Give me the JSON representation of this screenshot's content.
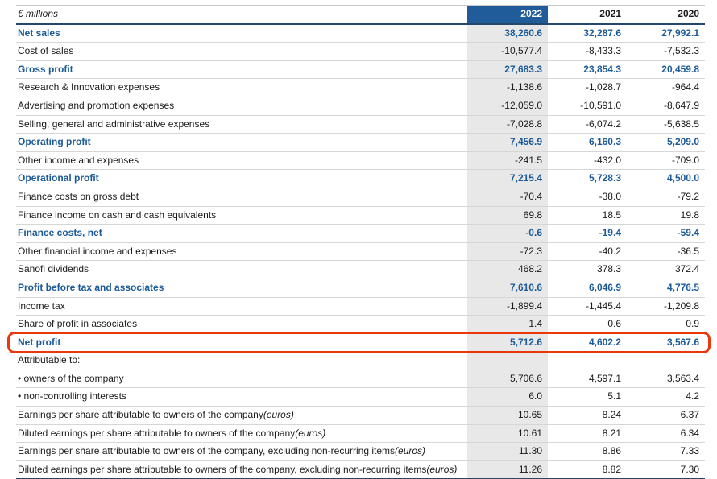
{
  "table": {
    "unit_label": "€ millions",
    "year_columns": [
      "2022",
      "2021",
      "2020"
    ],
    "rows": [
      {
        "label": "Net sales",
        "emphasis": true,
        "values": [
          "38,260.6",
          "32,287.6",
          "27,992.1"
        ]
      },
      {
        "label": "Cost of sales",
        "values": [
          "-10,577.4",
          "-8,433.3",
          "-7,532.3"
        ]
      },
      {
        "label": "Gross profit",
        "emphasis": true,
        "values": [
          "27,683.3",
          "23,854.3",
          "20,459.8"
        ]
      },
      {
        "label": "Research & Innovation expenses",
        "values": [
          "-1,138.6",
          "-1,028.7",
          "-964.4"
        ]
      },
      {
        "label": "Advertising and promotion expenses",
        "values": [
          "-12,059.0",
          "-10,591.0",
          "-8,647.9"
        ]
      },
      {
        "label": "Selling, general and administrative expenses",
        "values": [
          "-7,028.8",
          "-6,074.2",
          "-5,638.5"
        ]
      },
      {
        "label": "Operating profit",
        "emphasis": true,
        "values": [
          "7,456.9",
          "6,160.3",
          "5,209.0"
        ]
      },
      {
        "label": "Other income and expenses",
        "values": [
          "-241.5",
          "-432.0",
          "-709.0"
        ]
      },
      {
        "label": "Operational profit",
        "emphasis": true,
        "values": [
          "7,215.4",
          "5,728.3",
          "4,500.0"
        ]
      },
      {
        "label": "Finance costs on gross debt",
        "values": [
          "-70.4",
          "-38.0",
          "-79.2"
        ]
      },
      {
        "label": "Finance income on cash and cash equivalents",
        "values": [
          "69.8",
          "18.5",
          "19.8"
        ]
      },
      {
        "label": "Finance costs, net",
        "emphasis": true,
        "values": [
          "-0.6",
          "-19.4",
          "-59.4"
        ]
      },
      {
        "label": "Other financial income and expenses",
        "values": [
          "-72.3",
          "-40.2",
          "-36.5"
        ]
      },
      {
        "label": "Sanofi dividends",
        "values": [
          "468.2",
          "378.3",
          "372.4"
        ]
      },
      {
        "label": "Profit before tax and associates",
        "emphasis": true,
        "values": [
          "7,610.6",
          "6,046.9",
          "4,776.5"
        ]
      },
      {
        "label": "Income tax",
        "values": [
          "-1,899.4",
          "-1,445.4",
          "-1,209.8"
        ]
      },
      {
        "label": "Share of profit in associates",
        "values": [
          "1.4",
          "0.6",
          "0.9"
        ]
      },
      {
        "label": "Net profit",
        "emphasis": true,
        "highlighted": true,
        "values": [
          "5,712.6",
          "4,602.2",
          "3,567.6"
        ]
      },
      {
        "label": "Attributable to:",
        "values": [
          "",
          "",
          ""
        ]
      },
      {
        "label": "• owners of the company",
        "values": [
          "5,706.6",
          "4,597.1",
          "3,563.4"
        ]
      },
      {
        "label": "• non-controlling interests",
        "values": [
          "6.0",
          "5.1",
          "4.2"
        ]
      },
      {
        "label": "Earnings per share attributable to owners of the company",
        "label_italic": "(euros)",
        "values": [
          "10.65",
          "8.24",
          "6.37"
        ]
      },
      {
        "label": "Diluted earnings per share attributable to owners of the company",
        "label_italic": "(euros)",
        "values": [
          "10.61",
          "8.21",
          "6.34"
        ]
      },
      {
        "label": "Earnings per share attributable to owners of the company, excluding non-recurring items",
        "label_italic": "(euros)",
        "values": [
          "11.30",
          "8.86",
          "7.33"
        ]
      },
      {
        "label": "Diluted earnings per share attributable to owners of the company, excluding non-recurring items",
        "label_italic": "(euros)",
        "values": [
          "11.26",
          "8.82",
          "7.30"
        ]
      }
    ]
  },
  "colors": {
    "header_year_bg": "#1F5C99",
    "emphasis_text": "#1C5A96",
    "column_2022_bg": "#E8E8E8",
    "highlight_border": "#E8380C",
    "dark_rule": "#24476B",
    "row_divider": "#D6D6D6"
  }
}
